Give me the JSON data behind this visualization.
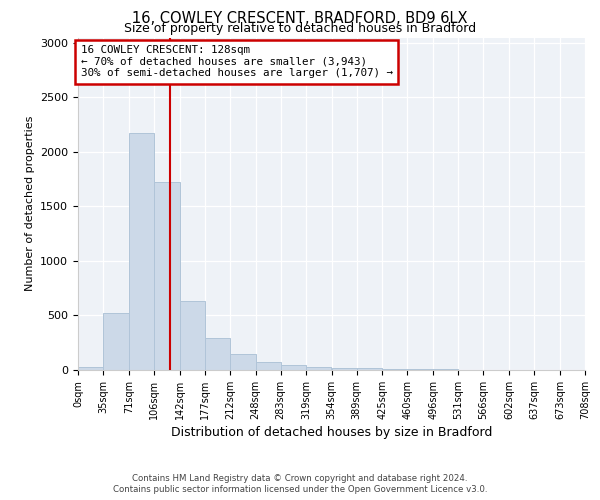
{
  "title": "16, COWLEY CRESCENT, BRADFORD, BD9 6LX",
  "subtitle": "Size of property relative to detached houses in Bradford",
  "xlabel": "Distribution of detached houses by size in Bradford",
  "ylabel": "Number of detached properties",
  "bar_color": "#ccd9e8",
  "bar_edge_color": "#b0c4d8",
  "vline_x": 128,
  "vline_color": "#cc0000",
  "annotation_title": "16 COWLEY CRESCENT: 128sqm",
  "annotation_line2": "← 70% of detached houses are smaller (3,943)",
  "annotation_line3": "30% of semi-detached houses are larger (1,707) →",
  "annotation_box_color": "#cc0000",
  "footer_line1": "Contains HM Land Registry data © Crown copyright and database right 2024.",
  "footer_line2": "Contains public sector information licensed under the Open Government Licence v3.0.",
  "bin_edges": [
    0,
    35,
    71,
    106,
    142,
    177,
    212,
    248,
    283,
    319,
    354,
    389,
    425,
    460,
    496,
    531,
    566,
    602,
    637,
    673,
    708
  ],
  "bin_values": [
    25,
    525,
    2175,
    1725,
    635,
    290,
    150,
    75,
    45,
    30,
    20,
    15,
    12,
    8,
    5,
    3,
    2,
    1,
    1,
    1
  ],
  "ylim": [
    0,
    3050
  ],
  "xlim": [
    0,
    708
  ],
  "tick_labels": [
    "0sqm",
    "35sqm",
    "71sqm",
    "106sqm",
    "142sqm",
    "177sqm",
    "212sqm",
    "248sqm",
    "283sqm",
    "319sqm",
    "354sqm",
    "389sqm",
    "425sqm",
    "460sqm",
    "496sqm",
    "531sqm",
    "566sqm",
    "602sqm",
    "637sqm",
    "673sqm",
    "708sqm"
  ],
  "ytick_labels": [
    "0",
    "500",
    "1000",
    "1500",
    "2000",
    "2500",
    "3000"
  ],
  "ytick_values": [
    0,
    500,
    1000,
    1500,
    2000,
    2500,
    3000
  ],
  "background_color": "#eef2f7",
  "title_fontsize": 10.5,
  "subtitle_fontsize": 9,
  "ylabel_fontsize": 8,
  "xlabel_fontsize": 9
}
